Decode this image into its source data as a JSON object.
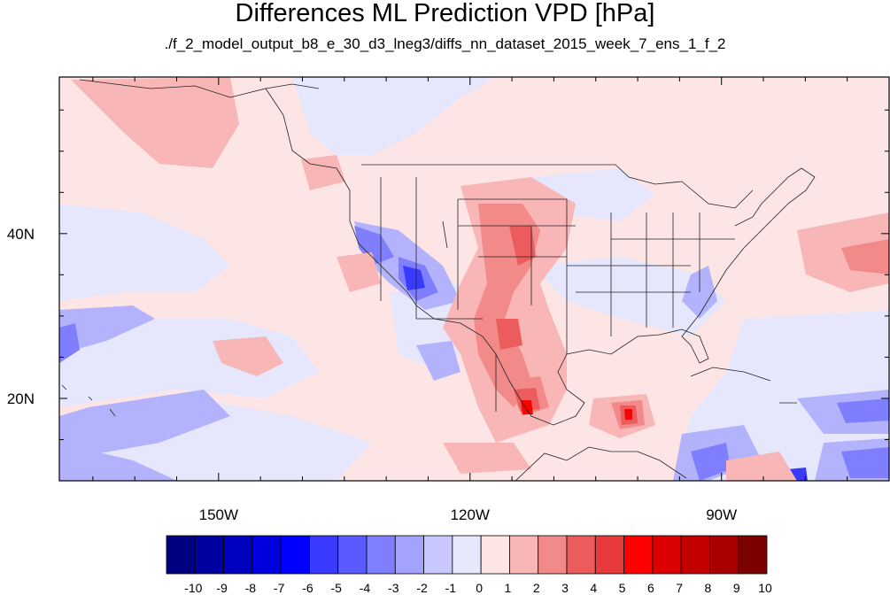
{
  "title": "Differences ML Prediction VPD [hPa]",
  "subtitle": "./f_2_model_output_b8_e_30_d3_lneg3/diffs_nn_dataset_2015_week_7_ens_1_f_2",
  "map": {
    "lon_range": [
      -169,
      -70
    ],
    "lat_range": [
      10,
      59
    ],
    "x_ticks": [
      {
        "lon": -150,
        "label": "150W"
      },
      {
        "lon": -120,
        "label": "120W"
      },
      {
        "lon": -90,
        "label": "90W"
      }
    ],
    "y_ticks": [
      {
        "lat": 40,
        "label": "40N"
      },
      {
        "lat": 20,
        "label": "20N"
      }
    ],
    "background_class": "0 to 1 (light pink)"
  },
  "colorbar": {
    "labels": [
      "-10",
      "-9",
      "-8",
      "-7",
      "-6",
      "-5",
      "-4",
      "-3",
      "-2",
      "-1",
      "0",
      "1",
      "2",
      "3",
      "4",
      "5",
      "6",
      "7",
      "8",
      "9",
      "10"
    ],
    "colors": [
      "#000080",
      "#00009f",
      "#0000bf",
      "#0000df",
      "#0000ff",
      "#3a3aff",
      "#5a5aff",
      "#7e7eff",
      "#a3a3ff",
      "#c8c8ff",
      "#e8e8fc",
      "#fde5e5",
      "#f8b6b6",
      "#f28a8a",
      "#ec5c5c",
      "#e83a3a",
      "#ff0000",
      "#dc0000",
      "#c20000",
      "#a80000",
      "#7d0000"
    ]
  }
}
